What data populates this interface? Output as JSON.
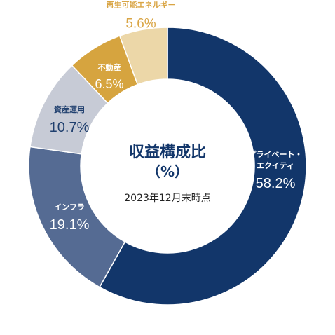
{
  "chart_data": {
    "type": "pie",
    "center_title": "収益構成比",
    "center_unit": "（%）",
    "center_note": "2023年12月末時点",
    "slices": [
      {
        "label_lines": [
          "プライベート・",
          "エクイティ"
        ],
        "value": 58.2,
        "value_text": "58.2%",
        "color": "#12366a",
        "text_color": "#ffffff"
      },
      {
        "label_lines": [
          "インフラ"
        ],
        "value": 19.1,
        "value_text": "19.1%",
        "color": "#556b93",
        "text_color": "#ffffff"
      },
      {
        "label_lines": [
          "資産運用"
        ],
        "value": 10.7,
        "value_text": "10.7%",
        "color": "#c7cbd6",
        "text_color": "#1f3f6e"
      },
      {
        "label_lines": [
          "不動産"
        ],
        "value": 6.5,
        "value_text": "6.5%",
        "color": "#d6a43f",
        "text_color": "#ffffff"
      },
      {
        "label_lines": [
          "再生可能エネルギー"
        ],
        "value": 5.6,
        "value_text": "5.6%",
        "color": "#ecd7a8",
        "text_color": "#d9a545"
      }
    ]
  }
}
